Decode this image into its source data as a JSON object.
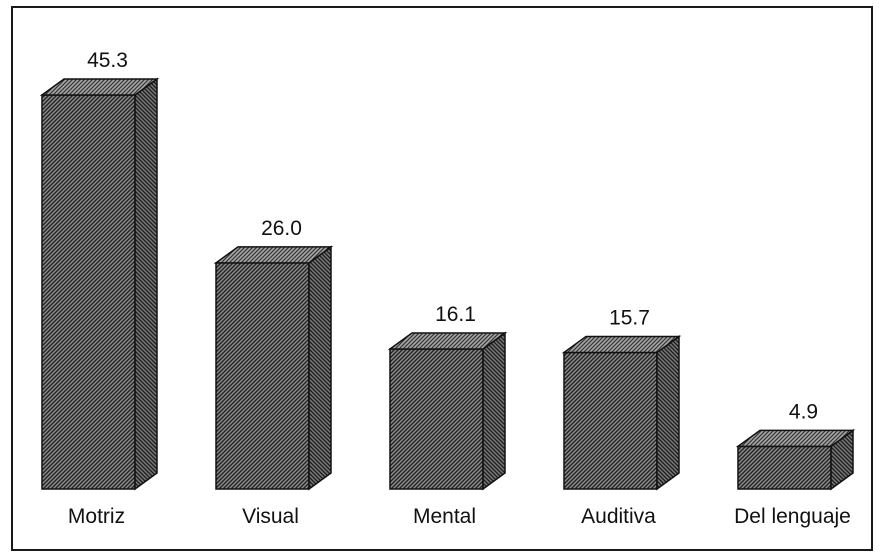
{
  "chart_data": {
    "type": "bar",
    "style": "3d",
    "categories": [
      "Motriz",
      "Visual",
      "Mental",
      "Auditiva",
      "Del lenguaje"
    ],
    "values": [
      45.3,
      26.0,
      16.1,
      15.7,
      4.9
    ],
    "value_labels": [
      "45.3",
      "26.0",
      "16.1",
      "15.7",
      "4.9"
    ],
    "title": "",
    "xlabel": "",
    "ylabel": "",
    "ylim": [
      0,
      45.3
    ],
    "grid": false,
    "legend": "none",
    "colors": {
      "bar_pattern_dark": "#2a2a2a",
      "bar_pattern_light": "#9a9a9a",
      "outline": "#111111"
    }
  }
}
